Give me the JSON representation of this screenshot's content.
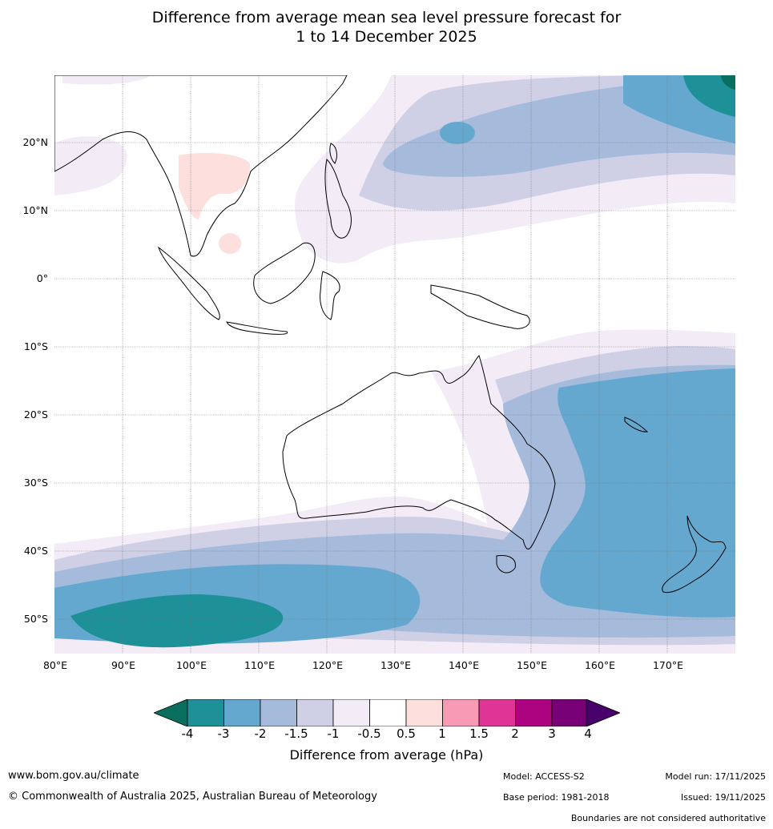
{
  "header": {
    "title_line1": "Difference from average mean sea level pressure forecast for",
    "title_line2": "1 to 14 December 2025"
  },
  "map": {
    "lat_labels": [
      "20°N",
      "10°N",
      "0°",
      "10°S",
      "20°S",
      "30°S",
      "40°S",
      "50°S"
    ],
    "lon_labels": [
      "80°E",
      "90°E",
      "100°E",
      "110°E",
      "120°E",
      "130°E",
      "140°E",
      "150°E",
      "160°E",
      "170°E"
    ],
    "extent": {
      "lon_min": 80,
      "lon_max": 180,
      "lat_min": -55,
      "lat_max": 30
    }
  },
  "colorbar": {
    "ticks": [
      "-4",
      "-3",
      "-2",
      "-1.5",
      "-1",
      "-0.5",
      "0.5",
      "1",
      "1.5",
      "2",
      "3",
      "4"
    ],
    "colors": [
      "#0a6e5e",
      "#1e9098",
      "#64a8cf",
      "#a6bbdc",
      "#cfd0e6",
      "#f3ecf6",
      "#ffffff",
      "#fde0de",
      "#f89ab4",
      "#de3597",
      "#ad0380",
      "#790177",
      "#48006a"
    ],
    "label": "Difference from average (hPa)"
  },
  "footer": {
    "website": "www.bom.gov.au/climate",
    "copyright": "© Commonwealth of Australia 2025, Australian Bureau of Meteorology",
    "model": "Model: ACCESS-S2",
    "base_period": "Base period: 1981-2018",
    "model_run": "Model run: 17/11/2025",
    "issued": "Issued: 19/11/2025",
    "disclaimer": "Boundaries are not considered authoritative"
  }
}
